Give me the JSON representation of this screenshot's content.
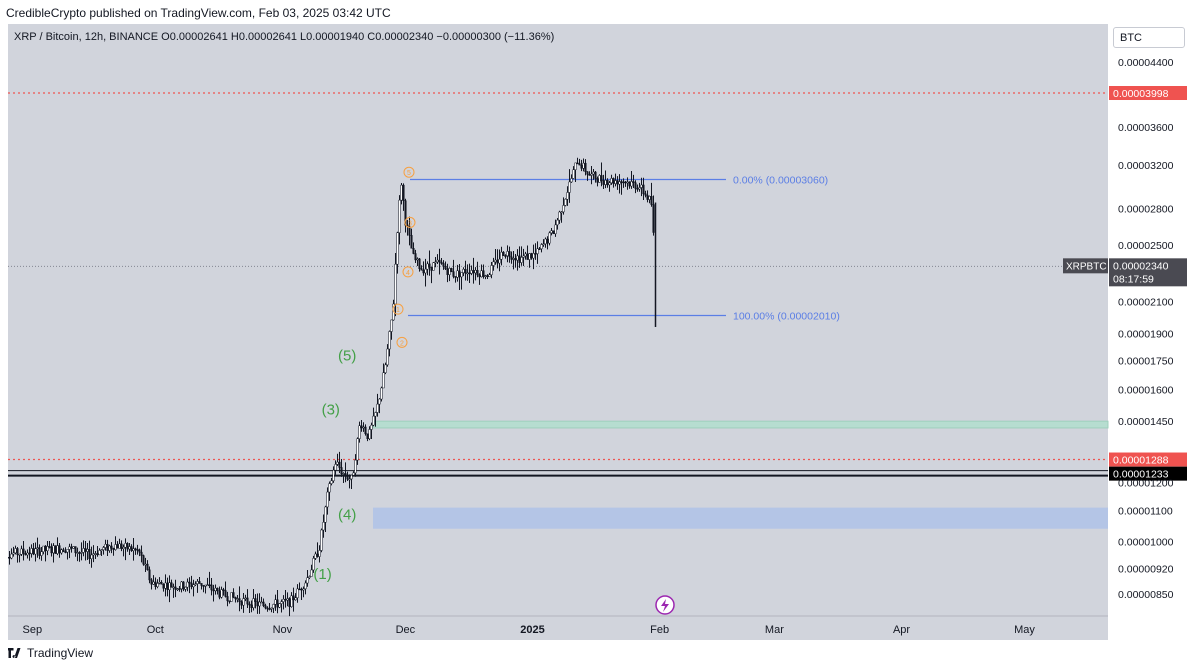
{
  "header": {
    "published_text": "CredibleCrypto published on TradingView.com, Feb 03, 2025 03:42 UTC"
  },
  "legend": {
    "symbol": "XRP / Bitcoin, 12h, BINANCE",
    "open_label": "O",
    "open": "0.00002641",
    "high_label": "H",
    "high": "0.00002641",
    "low_label": "L",
    "low": "0.00001940",
    "close_label": "C",
    "close": "0.00002340",
    "change": "−0.00000300 (−11.36%)"
  },
  "currency_button": "BTC",
  "footer": {
    "brand": "TradingView"
  },
  "colors": {
    "background": "#d1d4dc",
    "candle": "#131722",
    "fib": "#5b7ee5",
    "wave_green": "#43a047",
    "orange": "#f7a041",
    "red_line": "#ef5350",
    "green_zone": "#b6ddd0",
    "blue_zone": "#b4c5e6"
  },
  "chart_data": {
    "type": "candlestick",
    "title": "XRP / Bitcoin, 12h, BINANCE",
    "y_scale": "log",
    "ylim": [
      7.9e-06,
      4.8e-06
    ],
    "x_ticks": [
      "Sep",
      "Oct",
      "Nov",
      "Dec",
      "2025",
      "Jan",
      "Feb",
      "Mar",
      "Apr",
      "May"
    ],
    "y_ticks": [
      "0.00004400",
      "0.00003600",
      "0.00003200",
      "0.00002800",
      "0.00002500",
      "0.00002100",
      "0.00001900",
      "0.00001750",
      "0.00001600",
      "0.00001450",
      "0.00001200",
      "0.00001100",
      "0.00001000",
      "0.00000920",
      "0.00000850"
    ],
    "y_tick_values": [
      4.4e-05,
      3.6e-05,
      3.2e-05,
      2.8e-05,
      2.5e-05,
      2.1e-05,
      1.9e-05,
      1.75e-05,
      1.6e-05,
      1.45e-05,
      1.2e-05,
      1.1e-05,
      1e-05,
      9.2e-06,
      8.5e-06
    ],
    "price_path": [
      [
        "2024-08-27",
        9.6e-06
      ],
      [
        "2024-09-05",
        9.7e-06
      ],
      [
        "2024-09-12",
        9.8e-06
      ],
      [
        "2024-09-18",
        9.6e-06
      ],
      [
        "2024-09-24",
        9.9e-06
      ],
      [
        "2024-09-30",
        9.7e-06
      ],
      [
        "2024-10-03",
        8.8e-06
      ],
      [
        "2024-10-10",
        8.7e-06
      ],
      [
        "2024-10-15",
        8.8e-06
      ],
      [
        "2024-10-20",
        8.5e-06
      ],
      [
        "2024-10-26",
        8.3e-06
      ],
      [
        "2024-10-31",
        8.2e-06
      ],
      [
        "2024-11-06",
        8.3e-06
      ],
      [
        "2024-11-10",
        8.9e-06
      ],
      [
        "2024-11-13",
        9.8e-06
      ],
      [
        "2024-11-15",
        1.15e-05
      ],
      [
        "2024-11-17",
        1.28e-05
      ],
      [
        "2024-11-19",
        1.23e-05
      ],
      [
        "2024-11-21",
        1.21e-05
      ],
      [
        "2024-11-23",
        1.45e-05
      ],
      [
        "2024-11-25",
        1.38e-05
      ],
      [
        "2024-11-27",
        1.5e-05
      ],
      [
        "2024-11-29",
        1.7e-05
      ],
      [
        "2024-12-01",
        2.05e-05
      ],
      [
        "2024-12-02",
        2.6e-05
      ],
      [
        "2024-12-03",
        3.05e-05
      ],
      [
        "2024-12-04",
        2.7e-05
      ],
      [
        "2024-12-06",
        2.4e-05
      ],
      [
        "2024-12-08",
        2.32e-05
      ],
      [
        "2024-12-12",
        2.36e-05
      ],
      [
        "2024-12-16",
        2.28e-05
      ],
      [
        "2024-12-20",
        2.32e-05
      ],
      [
        "2024-12-24",
        2.28e-05
      ],
      [
        "2024-12-28",
        2.45e-05
      ],
      [
        "2025-01-01",
        2.4e-05
      ],
      [
        "2025-01-05",
        2.43e-05
      ],
      [
        "2025-01-09",
        2.6e-05
      ],
      [
        "2025-01-12",
        2.9e-05
      ],
      [
        "2025-01-15",
        3.25e-05
      ],
      [
        "2025-01-18",
        3.1e-05
      ],
      [
        "2025-01-22",
        3.05e-05
      ],
      [
        "2025-01-26",
        3.05e-05
      ],
      [
        "2025-01-30",
        3e-05
      ],
      [
        "2025-02-02",
        2.85e-05
      ],
      [
        "2025-02-03",
        2.34e-05
      ]
    ],
    "last_price": "0.00002340",
    "last_price_symbol": "XRPBTC",
    "countdown": "08:17:59",
    "horizontal_levels": [
      {
        "label": "0.00003998",
        "value": 3.998e-05,
        "style": "dotted-red"
      },
      {
        "label": "0.00001288",
        "value": 1.288e-05,
        "style": "dotted-red"
      },
      {
        "label": "0.00001233",
        "value": 1.233e-05,
        "style": "solid-black"
      }
    ],
    "fibonacci": [
      {
        "label": "0.00% (0.00003060)",
        "value": 3.06e-05
      },
      {
        "label": "100.00% (0.00002010)",
        "value": 2.01e-05
      }
    ],
    "zones": [
      {
        "name": "green-zone",
        "from": 1.42e-05,
        "to": 1.45e-05
      },
      {
        "name": "blue-zone",
        "from": 1.04e-05,
        "to": 1.11e-05
      }
    ],
    "elliott_waves": [
      {
        "label": "(1)",
        "date": "2024-11-14",
        "value": 8.9e-06
      },
      {
        "label": "(3)",
        "date": "2024-11-16",
        "value": 1.48e-05
      },
      {
        "label": "(4)",
        "date": "2024-11-20",
        "value": 1.07e-05
      },
      {
        "label": "(5)",
        "date": "2024-11-20",
        "value": 1.75e-05
      }
    ],
    "minor_waves": [
      {
        "label": "1",
        "value": 2.05e-05
      },
      {
        "label": "2",
        "value": 1.85e-05
      },
      {
        "label": "3",
        "value": 2.68e-05
      },
      {
        "label": "4",
        "value": 2.3e-05
      },
      {
        "label": "5",
        "value": 3.13e-05
      }
    ]
  }
}
